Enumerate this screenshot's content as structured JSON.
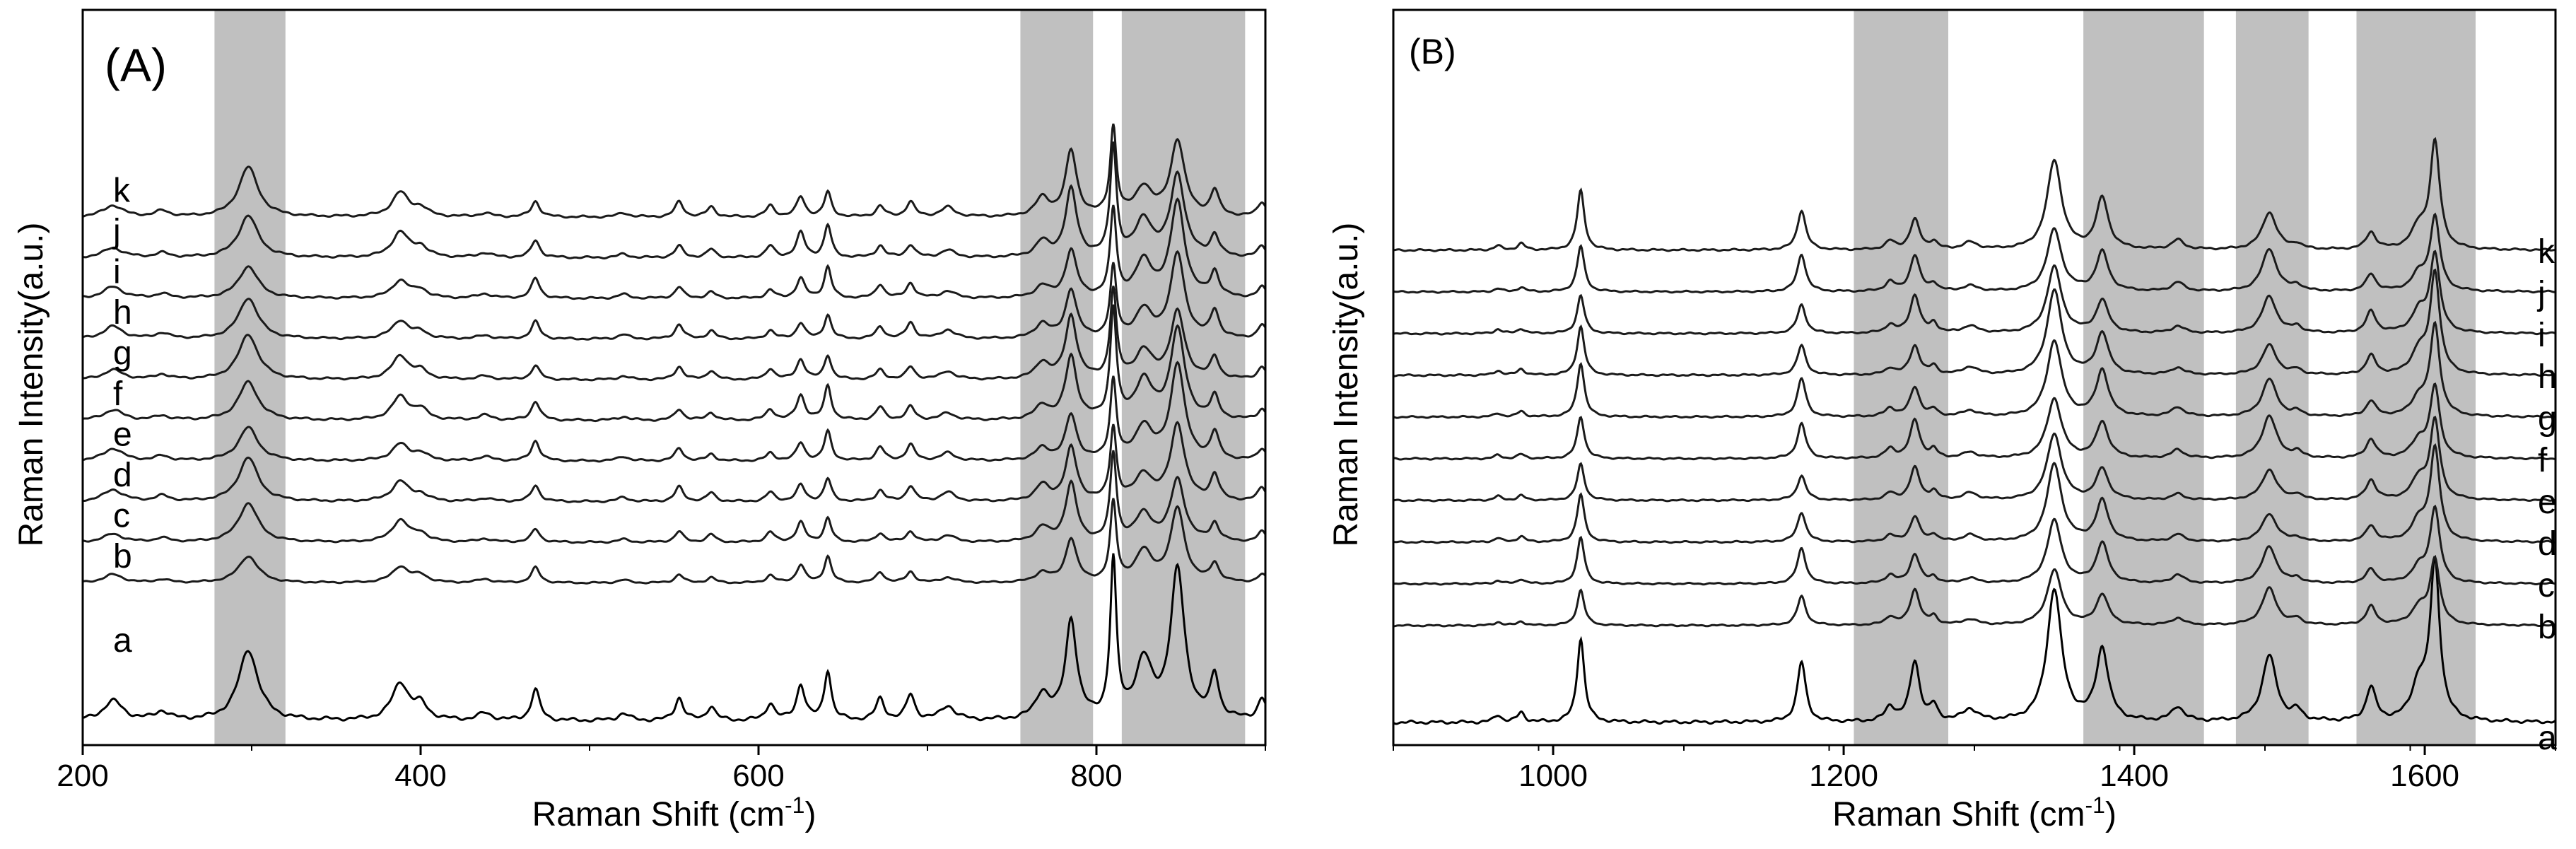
{
  "chart_data": [
    {
      "type": "line",
      "panel_label": "(A)",
      "xlabel_main": "Raman Shift (cm",
      "xlabel_sup": "-1",
      "xlabel_end": ")",
      "ylabel": "Raman Intensity(a.u.)",
      "xlim": [
        200,
        900
      ],
      "xticks": [
        200,
        400,
        600,
        800
      ],
      "shaded_regions": [
        [
          278,
          320
        ],
        [
          755,
          798
        ],
        [
          815,
          888
        ]
      ],
      "series_labels": [
        "a",
        "b",
        "c",
        "d",
        "e",
        "f",
        "g",
        "h",
        "i",
        "j",
        "k"
      ],
      "peaks": [
        {
          "x": 218,
          "h": 0.14,
          "w": 7
        },
        {
          "x": 247,
          "h": 0.06,
          "w": 5
        },
        {
          "x": 298,
          "h": 0.5,
          "w": 7
        },
        {
          "x": 388,
          "h": 0.26,
          "w": 6
        },
        {
          "x": 400,
          "h": 0.1,
          "w": 5
        },
        {
          "x": 438,
          "h": 0.05,
          "w": 5
        },
        {
          "x": 468,
          "h": 0.22,
          "w": 3
        },
        {
          "x": 520,
          "h": 0.05,
          "w": 4
        },
        {
          "x": 553,
          "h": 0.16,
          "w": 3
        },
        {
          "x": 572,
          "h": 0.1,
          "w": 3
        },
        {
          "x": 607,
          "h": 0.12,
          "w": 3
        },
        {
          "x": 625,
          "h": 0.25,
          "w": 3
        },
        {
          "x": 641,
          "h": 0.35,
          "w": 2.5
        },
        {
          "x": 672,
          "h": 0.15,
          "w": 3
        },
        {
          "x": 690,
          "h": 0.18,
          "w": 3
        },
        {
          "x": 712,
          "h": 0.1,
          "w": 5
        },
        {
          "x": 768,
          "h": 0.18,
          "w": 5
        },
        {
          "x": 785,
          "h": 0.7,
          "w": 4
        },
        {
          "x": 810,
          "h": 1.1,
          "w": 2.2
        },
        {
          "x": 828,
          "h": 0.4,
          "w": 6
        },
        {
          "x": 848,
          "h": 1.05,
          "w": 5
        },
        {
          "x": 870,
          "h": 0.3,
          "w": 3
        },
        {
          "x": 898,
          "h": 0.15,
          "w": 3
        }
      ],
      "series_scales": [
        1.0,
        0.45,
        0.5,
        0.55,
        0.55,
        0.6,
        0.55,
        0.55,
        0.55,
        0.6,
        0.6
      ]
    },
    {
      "type": "line",
      "panel_label": "(B)",
      "xlabel_main": "Raman Shift (cm",
      "xlabel_sup": "-1",
      "xlabel_end": ")",
      "ylabel": "Raman Intensity(a.u.)",
      "xlim": [
        890,
        1690
      ],
      "xticks": [
        1000,
        1200,
        1400,
        1600
      ],
      "shaded_regions": [
        [
          1207,
          1272
        ],
        [
          1365,
          1448
        ],
        [
          1470,
          1520
        ],
        [
          1553,
          1635
        ]
      ],
      "series_labels": [
        "a",
        "b",
        "c",
        "d",
        "e",
        "f",
        "g",
        "h",
        "i",
        "j",
        "k"
      ],
      "peaks": [
        {
          "x": 962,
          "h": 0.06,
          "w": 3
        },
        {
          "x": 978,
          "h": 0.08,
          "w": 3
        },
        {
          "x": 1019,
          "h": 0.7,
          "w": 3
        },
        {
          "x": 1171,
          "h": 0.5,
          "w": 3.5
        },
        {
          "x": 1232,
          "h": 0.12,
          "w": 4
        },
        {
          "x": 1249,
          "h": 0.5,
          "w": 4
        },
        {
          "x": 1262,
          "h": 0.12,
          "w": 3
        },
        {
          "x": 1287,
          "h": 0.1,
          "w": 6
        },
        {
          "x": 1345,
          "h": 1.1,
          "w": 6
        },
        {
          "x": 1378,
          "h": 0.6,
          "w": 5
        },
        {
          "x": 1430,
          "h": 0.12,
          "w": 5
        },
        {
          "x": 1493,
          "h": 0.55,
          "w": 6
        },
        {
          "x": 1512,
          "h": 0.08,
          "w": 4
        },
        {
          "x": 1563,
          "h": 0.28,
          "w": 4
        },
        {
          "x": 1596,
          "h": 0.3,
          "w": 6
        },
        {
          "x": 1607,
          "h": 1.3,
          "w": 4
        }
      ],
      "series_scales": [
        1.0,
        0.5,
        0.5,
        0.5,
        0.5,
        0.55,
        0.55,
        0.55,
        0.55,
        0.55,
        0.6
      ]
    }
  ]
}
